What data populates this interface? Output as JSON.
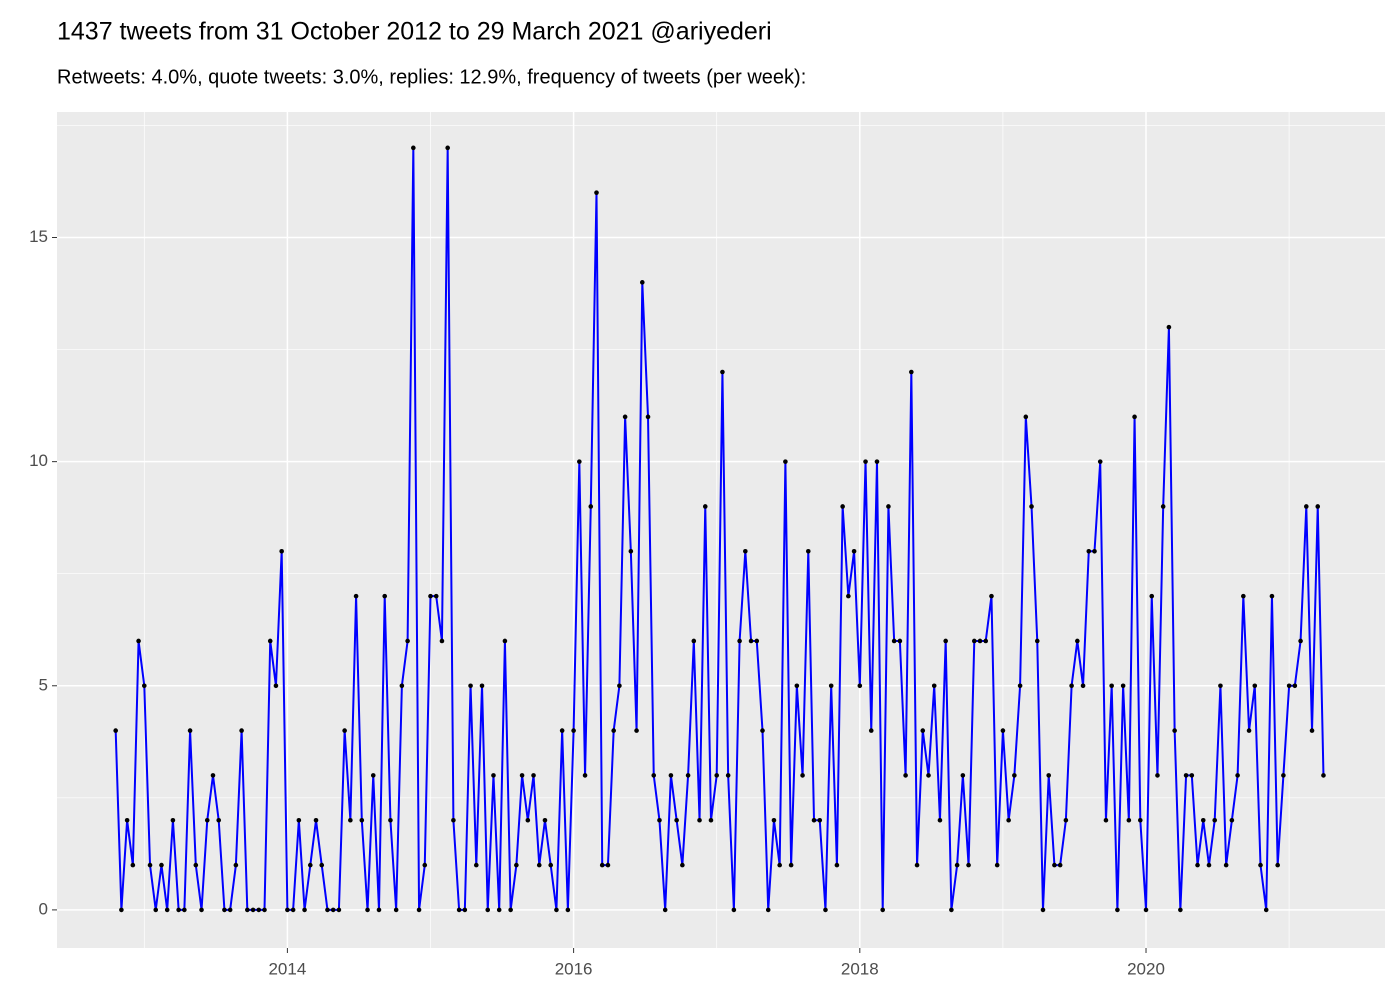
{
  "chart_data": {
    "type": "line",
    "title": "1437 tweets from 31 October 2012 to 29 March 2021 @ariyederi",
    "subtitle": "Retweets: 4.0%, quote tweets: 3.0%, replies: 12.9%, frequency of tweets (per week):",
    "x": [
      2012.8,
      2012.84,
      2012.88,
      2012.92,
      2012.96,
      2013.0,
      2013.04,
      2013.08,
      2013.12,
      2013.16,
      2013.2,
      2013.24,
      2013.28,
      2013.32,
      2013.36,
      2013.4,
      2013.44,
      2013.48,
      2013.52,
      2013.56,
      2013.6,
      2013.64,
      2013.68,
      2013.72,
      2013.76,
      2013.8,
      2013.84,
      2013.88,
      2013.92,
      2013.96,
      2014.0,
      2014.04,
      2014.08,
      2014.12,
      2014.16,
      2014.2,
      2014.24,
      2014.28,
      2014.32,
      2014.36,
      2014.4,
      2014.44,
      2014.48,
      2014.52,
      2014.56,
      2014.6,
      2014.64,
      2014.68,
      2014.72,
      2014.76,
      2014.8,
      2014.84,
      2014.88,
      2014.92,
      2014.96,
      2015.0,
      2015.04,
      2015.08,
      2015.12,
      2015.16,
      2015.2,
      2015.24,
      2015.28,
      2015.32,
      2015.36,
      2015.4,
      2015.44,
      2015.48,
      2015.52,
      2015.56,
      2015.6,
      2015.64,
      2015.68,
      2015.72,
      2015.76,
      2015.8,
      2015.84,
      2015.88,
      2015.92,
      2015.96,
      2016.0,
      2016.04,
      2016.08,
      2016.12,
      2016.16,
      2016.2,
      2016.24,
      2016.28,
      2016.32,
      2016.36,
      2016.4,
      2016.44,
      2016.48,
      2016.52,
      2016.56,
      2016.6,
      2016.64,
      2016.68,
      2016.72,
      2016.76,
      2016.8,
      2016.84,
      2016.88,
      2016.92,
      2016.96,
      2017.0,
      2017.04,
      2017.08,
      2017.12,
      2017.16,
      2017.2,
      2017.24,
      2017.28,
      2017.32,
      2017.36,
      2017.4,
      2017.44,
      2017.48,
      2017.52,
      2017.56,
      2017.6,
      2017.64,
      2017.68,
      2017.72,
      2017.76,
      2017.8,
      2017.84,
      2017.88,
      2017.92,
      2017.96,
      2018.0,
      2018.04,
      2018.08,
      2018.12,
      2018.16,
      2018.2,
      2018.24,
      2018.28,
      2018.32,
      2018.36,
      2018.4,
      2018.44,
      2018.48,
      2018.52,
      2018.56,
      2018.6,
      2018.64,
      2018.68,
      2018.72,
      2018.76,
      2018.8,
      2018.84,
      2018.88,
      2018.92,
      2018.96,
      2019.0,
      2019.04,
      2019.08,
      2019.12,
      2019.16,
      2019.2,
      2019.24,
      2019.28,
      2019.32,
      2019.36,
      2019.4,
      2019.44,
      2019.48,
      2019.52,
      2019.56,
      2019.6,
      2019.64,
      2019.68,
      2019.72,
      2019.76,
      2019.8,
      2019.84,
      2019.88,
      2019.92,
      2019.96,
      2020.0,
      2020.04,
      2020.08,
      2020.12,
      2020.16,
      2020.2,
      2020.24,
      2020.28,
      2020.32,
      2020.36,
      2020.4,
      2020.44,
      2020.48,
      2020.52,
      2020.56,
      2020.6,
      2020.64,
      2020.68,
      2020.72,
      2020.76,
      2020.8,
      2020.84,
      2020.88,
      2020.92,
      2020.96,
      2021.0,
      2021.04,
      2021.08,
      2021.12,
      2021.16,
      2021.2,
      2021.24
    ],
    "series": [
      {
        "color": "#0000ff",
        "point_color": "#000000",
        "values": [
          4,
          0,
          2,
          1,
          6,
          5,
          1,
          0,
          1,
          0,
          2,
          0,
          0,
          4,
          1,
          0,
          2,
          3,
          2,
          0,
          0,
          1,
          4,
          0,
          0,
          0,
          0,
          6,
          5,
          8,
          0,
          0,
          2,
          0,
          1,
          2,
          1,
          0,
          0,
          0,
          4,
          2,
          7,
          2,
          0,
          3,
          0,
          7,
          2,
          0,
          5,
          6,
          17,
          0,
          1,
          7,
          7,
          6,
          17,
          2,
          0,
          0,
          5,
          1,
          5,
          0,
          3,
          0,
          6,
          0,
          1,
          3,
          2,
          3,
          1,
          2,
          1,
          0,
          4,
          0,
          4,
          10,
          3,
          9,
          16,
          1,
          1,
          4,
          5,
          11,
          8,
          4,
          14,
          11,
          3,
          2,
          0,
          3,
          2,
          1,
          3,
          6,
          2,
          9,
          2,
          3,
          12,
          3,
          0,
          6,
          8,
          6,
          6,
          4,
          0,
          2,
          1,
          10,
          1,
          5,
          3,
          8,
          2,
          2,
          0,
          5,
          1,
          9,
          7,
          8,
          5,
          10,
          4,
          10,
          0,
          9,
          6,
          6,
          3,
          12,
          1,
          4,
          3,
          5,
          2,
          6,
          0,
          1,
          3,
          1,
          6,
          6,
          6,
          7,
          1,
          4,
          2,
          3,
          5,
          11,
          9,
          6,
          0,
          3,
          1,
          1,
          2,
          5,
          6,
          5,
          8,
          8,
          10,
          2,
          5,
          0,
          5,
          2,
          11,
          2,
          0,
          7,
          3,
          9,
          13,
          4,
          0,
          3,
          3,
          1,
          2,
          1,
          2,
          5,
          1,
          2,
          3,
          7,
          4,
          5,
          1,
          0,
          7,
          1,
          3,
          5,
          5,
          6,
          9,
          4,
          9,
          3
        ]
      }
    ],
    "xlim": [
      2012.39,
      2021.67
    ],
    "xticks": [
      2014,
      2016,
      2018,
      2020
    ],
    "x_minor_ticks": [
      2013,
      2015,
      2017,
      2019,
      2021
    ],
    "ylim": [
      -0.85,
      17.8
    ],
    "yticks": [
      0,
      5,
      10,
      15
    ],
    "y_minor_ticks": [
      2.5,
      7.5,
      12.5,
      17.5
    ],
    "grid": true,
    "panel_color": "#ebebeb"
  }
}
